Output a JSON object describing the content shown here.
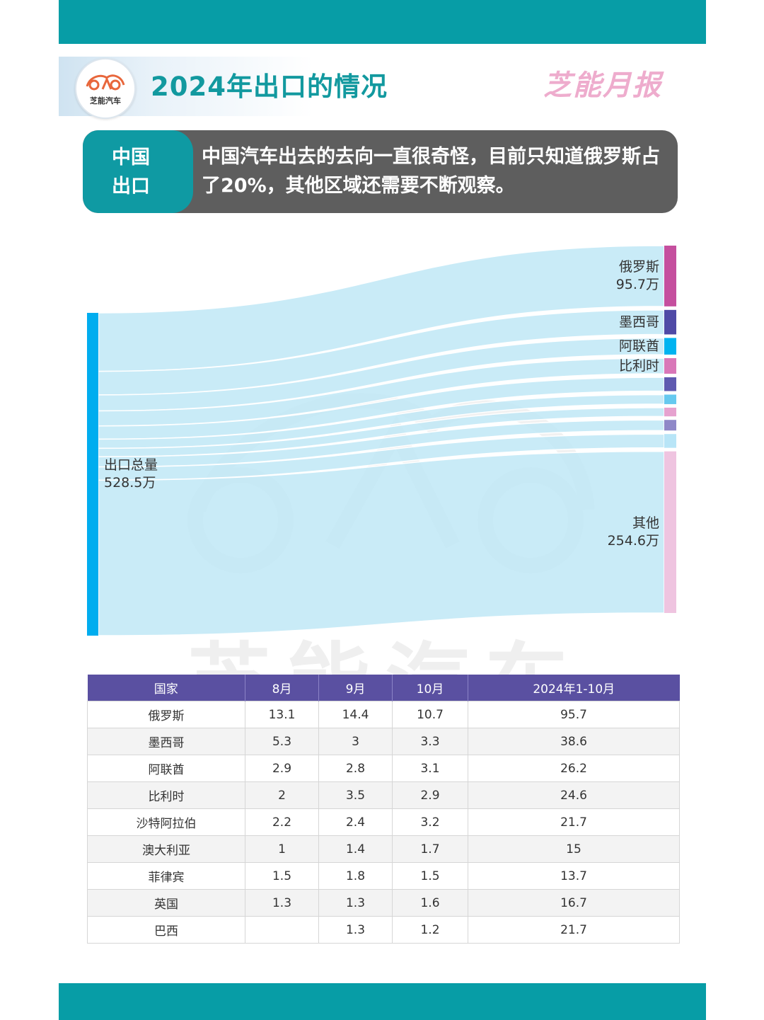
{
  "header": {
    "logo_text": "芝能汽车",
    "title": "2024年出口的情况",
    "brand": "芝能月报"
  },
  "banner": {
    "tag": "中国出口",
    "text": "中国汽车出去的去向一直很奇怪，目前只知道俄罗斯占了20%，其他区域还需要不断观察。"
  },
  "watermark": "芝能汽车",
  "colors": {
    "teal": "#079da6",
    "flow": "#bfe7f6",
    "source_bar": "#00adef",
    "table_header": "#5a50a1"
  },
  "chart_data": {
    "type": "sankey",
    "unit": "万",
    "source": {
      "name": "出口总量",
      "value_label": "528.5万",
      "value": 528.5
    },
    "targets": [
      {
        "name": "俄罗斯",
        "value": 95.7,
        "value_label": "95.7万",
        "color": "#c54f9e"
      },
      {
        "name": "墨西哥",
        "value": 38.6,
        "value_label": "",
        "color": "#4f4aa6"
      },
      {
        "name": "阿联酋",
        "value": 26.2,
        "value_label": "",
        "color": "#00b3f0"
      },
      {
        "name": "比利时",
        "value": 24.6,
        "value_label": "",
        "color": "#d977b8"
      },
      {
        "name": "",
        "value": 21.7,
        "value_label": "",
        "color": "#5f5ab0"
      },
      {
        "name": "",
        "value": 15,
        "value_label": "",
        "color": "#66c9ef"
      },
      {
        "name": "",
        "value": 13.7,
        "value_label": "",
        "color": "#e6a2cf"
      },
      {
        "name": "",
        "value": 16.7,
        "value_label": "",
        "color": "#8f88c8"
      },
      {
        "name": "",
        "value": 21.7,
        "value_label": "",
        "color": "#b8e5f7"
      },
      {
        "name": "其他",
        "value": 254.6,
        "value_label": "254.6万",
        "color": "#efc4e0"
      }
    ]
  },
  "table": {
    "headers": [
      "国家",
      "8月",
      "9月",
      "10月",
      "2024年1-10月"
    ],
    "rows": [
      [
        "俄罗斯",
        "13.1",
        "14.4",
        "10.7",
        "95.7"
      ],
      [
        "墨西哥",
        "5.3",
        "3",
        "3.3",
        "38.6"
      ],
      [
        "阿联酋",
        "2.9",
        "2.8",
        "3.1",
        "26.2"
      ],
      [
        "比利时",
        "2",
        "3.5",
        "2.9",
        "24.6"
      ],
      [
        "沙特阿拉伯",
        "2.2",
        "2.4",
        "3.2",
        "21.7"
      ],
      [
        "澳大利亚",
        "1",
        "1.4",
        "1.7",
        "15"
      ],
      [
        "菲律宾",
        "1.5",
        "1.8",
        "1.5",
        "13.7"
      ],
      [
        "英国",
        "1.3",
        "1.3",
        "1.6",
        "16.7"
      ],
      [
        "巴西",
        "",
        "1.3",
        "1.2",
        "21.7"
      ]
    ]
  }
}
